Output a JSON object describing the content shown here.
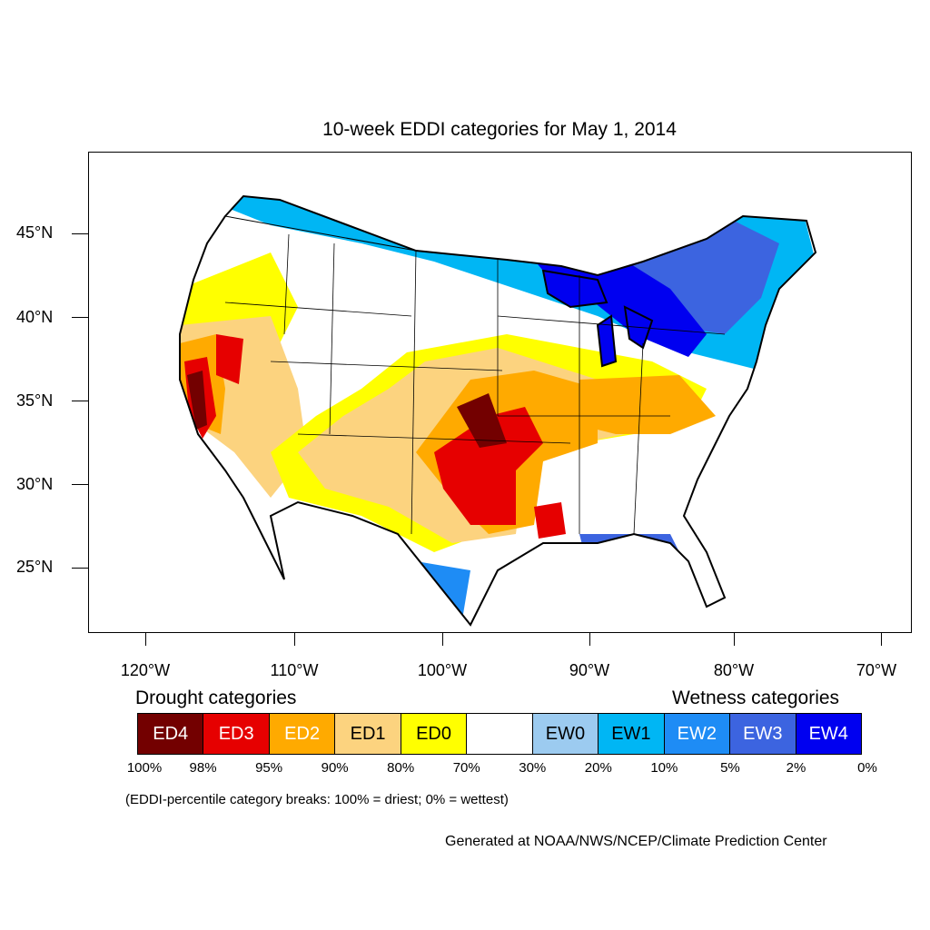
{
  "title": "10-week EDDI categories for May 1, 2014",
  "lat_labels": [
    "45°N",
    "40°N",
    "35°N",
    "30°N",
    "25°N"
  ],
  "lon_labels": [
    "120°W",
    "110°W",
    "100°W",
    "90°W",
    "80°W",
    "70°W"
  ],
  "legend": {
    "drought_heading": "Drought categories",
    "wetness_heading": "Wetness categories",
    "categories": [
      {
        "label": "ED4",
        "color": "#730000",
        "text_color": "#ffffff"
      },
      {
        "label": "ED3",
        "color": "#e60000",
        "text_color": "#ffffff"
      },
      {
        "label": "ED2",
        "color": "#ffaa00",
        "text_color": "#ffffff"
      },
      {
        "label": "ED1",
        "color": "#fcd37f",
        "text_color": "#000000"
      },
      {
        "label": "ED0",
        "color": "#ffff00",
        "text_color": "#000000"
      },
      {
        "label": "",
        "color": "#ffffff",
        "text_color": "#000000"
      },
      {
        "label": "EW0",
        "color": "#9ccbf0",
        "text_color": "#000000"
      },
      {
        "label": "EW1",
        "color": "#00b6f4",
        "text_color": "#000000"
      },
      {
        "label": "EW2",
        "color": "#1e8cf5",
        "text_color": "#ffffff"
      },
      {
        "label": "EW3",
        "color": "#3c64e0",
        "text_color": "#ffffff"
      },
      {
        "label": "EW4",
        "color": "#0000f0",
        "text_color": "#ffffff"
      }
    ],
    "breaks": [
      "100%",
      "98%",
      "95%",
      "90%",
      "80%",
      "70%",
      "30%",
      "20%",
      "10%",
      "5%",
      "2%",
      "0%"
    ]
  },
  "note": "(EDDI-percentile category breaks: 100% = driest; 0% = wettest)",
  "credit": "Generated at NOAA/NWS/NCEP/Climate Prediction Center"
}
